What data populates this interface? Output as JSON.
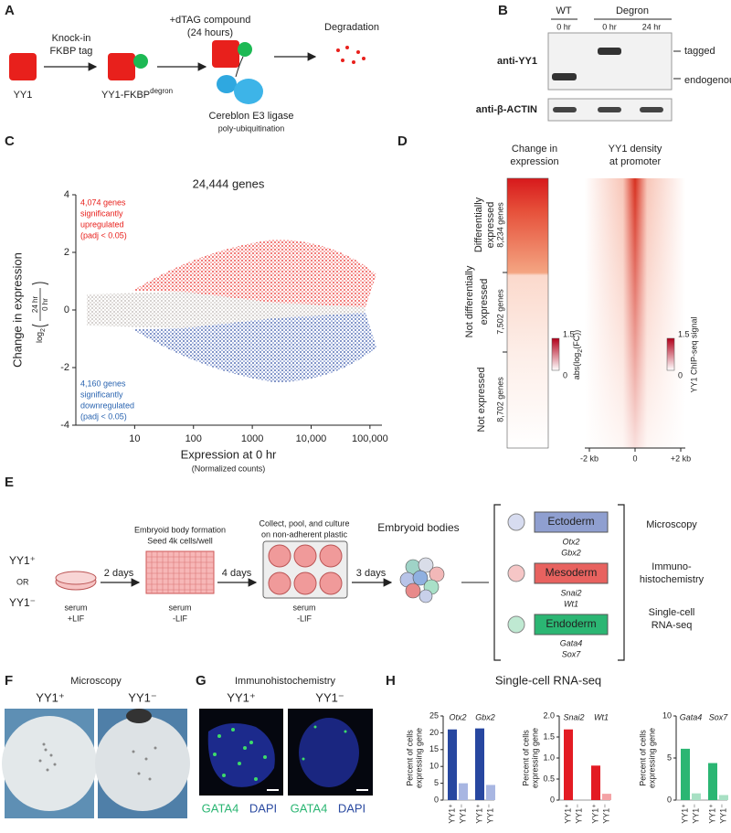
{
  "panels": {
    "a": {
      "label": "A",
      "protein": "YY1",
      "step1": [
        "Knock-in",
        "FKBP tag"
      ],
      "fusion": "YY1-FKBP",
      "fusion_sup": "degron",
      "step2": [
        "+dTAG compound",
        "(24 hours)"
      ],
      "ligase": "Cereblon E3 ligase",
      "process": "poly-ubiquitination",
      "result": "Degradation"
    },
    "b": {
      "label": "B",
      "groups": [
        "WT",
        "Degron"
      ],
      "lanes": [
        "0 hr",
        "0 hr",
        "24 hr"
      ],
      "blots": [
        "anti-YY1",
        "anti-β-ACTIN"
      ],
      "bands": [
        "tagged",
        "endogenous"
      ]
    },
    "c": {
      "label": "C",
      "title": "24,444 genes",
      "ylabel": "Change in expression",
      "ylabel_log": "log",
      "ylabel_base": "2",
      "ylabel_num": "24 hr",
      "ylabel_den": "0 hr",
      "up": [
        "4,074 genes",
        "significantly",
        "upregulated",
        "(padj < 0.05)"
      ],
      "up_color": "#e8201c",
      "down": [
        "4,160 genes",
        "significantly",
        "downregulated",
        "(padj < 0.05)"
      ],
      "down_color": "#2a64b0",
      "xlabel": "Expression at 0 hr",
      "xlabel_note": "(Normalized counts)",
      "xscale": "log",
      "xlim": [
        1,
        160000
      ],
      "xticks": [
        10,
        100,
        1000,
        {
          "value": 10000,
          "label": "10,000"
        },
        {
          "value": 100000,
          "label": "100,000"
        }
      ],
      "ylim": [
        -4,
        4
      ],
      "yticks": [
        -4,
        -2,
        0,
        2,
        4
      ]
    },
    "d": {
      "label": "D",
      "titles": [
        [
          "Change in",
          "expression"
        ],
        [
          "YY1 density",
          "at promoter"
        ]
      ],
      "groups": [
        {
          "name": [
            "Differentially",
            "expressed"
          ],
          "count": "8,234 genes"
        },
        {
          "name": [
            "Not differentially",
            "expressed"
          ],
          "count": "7,502 genes"
        },
        {
          "name": [
            "Not expressed"
          ],
          "count": "8,702 genes"
        }
      ],
      "colorbars": [
        {
          "ticks": [
            0,
            1.5
          ],
          "label": "abs(log",
          "label_sub": "2",
          "label_end": "(FC))"
        },
        {
          "ticks": [
            0,
            1.5
          ],
          "label": "YY1 ChIP-seq signal"
        }
      ],
      "xlim": [
        -2.2,
        2.2
      ],
      "xticks": [
        {
          "value": -2,
          "label": "-2 kb"
        },
        0,
        {
          "value": 2,
          "label": "+2 kb"
        }
      ]
    },
    "e": {
      "label": "E",
      "lines": [
        "YY1⁺",
        "OR",
        "YY1⁻"
      ],
      "conditions": [
        [
          "serum",
          "+LIF"
        ],
        [
          "serum",
          "-LIF"
        ],
        [
          "serum",
          "-LIF"
        ]
      ],
      "durations": [
        "2 days",
        "4 days",
        "3 days"
      ],
      "steps": [
        [
          "Embryoid body formation",
          "Seed 4k cells/well"
        ],
        [
          "Collect, pool, and culture",
          "on non-adherent plastic"
        ],
        [
          "Embryoid bodies"
        ]
      ],
      "layers": [
        {
          "name": "Ectoderm",
          "genes": [
            "Otx2",
            "Gbx2"
          ]
        },
        {
          "name": "Mesoderm",
          "genes": [
            "Snai2",
            "Wt1"
          ]
        },
        {
          "name": "Endoderm",
          "genes": [
            "Gata4",
            "Sox7"
          ]
        }
      ],
      "assays": [
        [
          "Microscopy"
        ],
        [
          "Immuno-",
          "histochemistry"
        ],
        [
          "Single-cell",
          "RNA-seq"
        ]
      ]
    },
    "f": {
      "label": "F",
      "title": "Microscopy",
      "conditions": [
        "YY1⁺",
        "YY1⁻"
      ]
    },
    "g": {
      "label": "G",
      "title": "Immunohistochemistry",
      "conditions": [
        "YY1⁺",
        "YY1⁻"
      ],
      "stains": [
        "GATA4",
        "DAPI"
      ]
    },
    "h": {
      "label": "H",
      "title": "Single-cell RNA-seq"
    }
  },
  "chart_data": [
    {
      "type": "bar",
      "ylabel": [
        "Percent of cells",
        "expressing gene"
      ],
      "groups": [
        "Otx2",
        "Gbx2"
      ],
      "categories": [
        "YY1⁺",
        "YY1⁻",
        "YY1⁺",
        "YY1⁻"
      ],
      "values": [
        21,
        5,
        21.3,
        4.5
      ],
      "colors": [
        "#2747a0",
        "#a8b6e2",
        "#2747a0",
        "#a8b6e2"
      ],
      "ylim": [
        0,
        25
      ],
      "yticks": [
        0,
        5,
        10,
        15,
        20,
        25
      ]
    },
    {
      "type": "bar",
      "ylabel": [
        "Percent of cells",
        "expressing gene"
      ],
      "groups": [
        "Snai2",
        "Wt1"
      ],
      "categories": [
        "YY1⁺",
        "YY1⁻",
        "YY1⁺",
        "YY1⁻"
      ],
      "values": [
        1.68,
        0,
        0.82,
        0.15
      ],
      "colors": [
        "#e31b23",
        "#f4a3a6",
        "#e31b23",
        "#f4a3a6"
      ],
      "ylim": [
        0,
        2
      ],
      "yticks": [
        0,
        0.5,
        {
          "value": 1,
          "label": "1.0"
        },
        1.5,
        {
          "value": 2,
          "label": "2.0"
        }
      ]
    },
    {
      "type": "bar",
      "ylabel": [
        "Percent of cells",
        "expressing gene"
      ],
      "groups": [
        "Gata4",
        "Sox7"
      ],
      "categories": [
        "YY1⁺",
        "YY1⁻",
        "YY1⁺",
        "YY1⁻"
      ],
      "values": [
        6.1,
        0.8,
        4.4,
        0.6
      ],
      "colors": [
        "#2bb673",
        "#a8e0c4",
        "#2bb673",
        "#a8e0c4"
      ],
      "ylim": [
        0,
        10
      ],
      "yticks": [
        0,
        5,
        10
      ]
    }
  ]
}
